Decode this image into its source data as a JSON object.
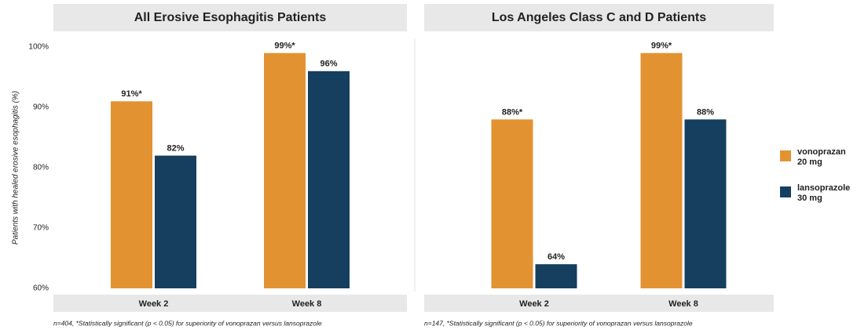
{
  "chart_data": [
    {
      "type": "bar",
      "title": "All Erosive Esophagitis Patients",
      "ylabel": "Patients with healed erosive esophagitis (%)",
      "categories": [
        "Week 2",
        "Week 8"
      ],
      "series": [
        {
          "name": "vonoprazan 20 mg",
          "color": "#e39232",
          "values": [
            91,
            99
          ],
          "value_labels": [
            "91%*",
            "99%*"
          ]
        },
        {
          "name": "lansoprazole 30 mg",
          "color": "#163f5f",
          "values": [
            82,
            96
          ],
          "value_labels": [
            "82%",
            "96%"
          ]
        }
      ],
      "ylim": [
        60,
        100
      ],
      "yticks": [
        {
          "value": 60,
          "label": "60%"
        },
        {
          "value": 70,
          "label": "70%"
        },
        {
          "value": 80,
          "label": "80%"
        },
        {
          "value": 90,
          "label": "90%"
        },
        {
          "value": 100,
          "label": "100%"
        }
      ],
      "note": "n=404, *Statistically significant (p < 0.05) for superiority of vonoprazan versus lansoprazole"
    },
    {
      "type": "bar",
      "title": "Los Angeles Class C and D Patients",
      "categories": [
        "Week 2",
        "Week 8"
      ],
      "series": [
        {
          "color": "#e39232",
          "values": [
            88,
            99
          ],
          "value_labels": [
            "88%*",
            "99%*"
          ]
        },
        {
          "color": "#163f5f",
          "values": [
            64,
            88
          ],
          "value_labels": [
            "64%",
            "88%"
          ]
        }
      ],
      "ylim": [
        60,
        100
      ],
      "note": "n=147, *Statistically significant (p < 0.05) for superiority of vonoprazan versus lansoprazole"
    }
  ]
}
